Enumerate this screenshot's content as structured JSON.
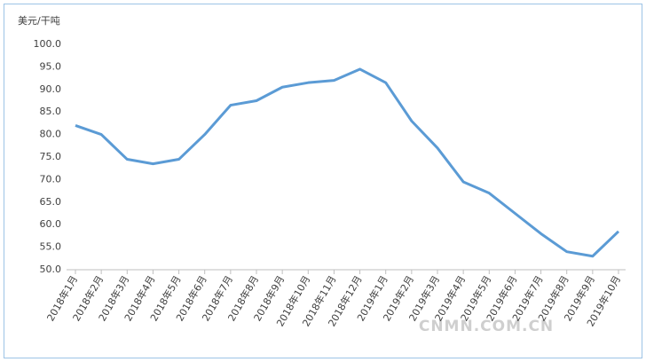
{
  "chart_data": {
    "type": "line",
    "y_axis_label": "美元/干吨",
    "watermark": "CNMN.COM.CN",
    "categories": [
      "2018年1月",
      "2018年2月",
      "2018年3月",
      "2018年4月",
      "2018年5月",
      "2018年6月",
      "2018年7月",
      "2018年8月",
      "2018年9月",
      "2018年10月",
      "2018年11月",
      "2018年12月",
      "2019年1月",
      "2019年2月",
      "2019年3月",
      "2019年4月",
      "2019年5月",
      "2019年6月",
      "2019年7月",
      "2019年8月",
      "2019年9月",
      "2019年10月"
    ],
    "series": [
      {
        "color": "#5b9bd5",
        "values": [
          82,
          80,
          74.5,
          73.5,
          74.5,
          80,
          86.5,
          87.5,
          90.5,
          91.5,
          92,
          94.5,
          91.5,
          83,
          77,
          69.5,
          67,
          62.5,
          58,
          54,
          53,
          58.5
        ]
      }
    ],
    "ylim": [
      50,
      100
    ],
    "yticks": [
      {
        "value": 50,
        "label": "50.0"
      },
      {
        "value": 55,
        "label": "55.0"
      },
      {
        "value": 60,
        "label": "60.0"
      },
      {
        "value": 65,
        "label": "65.0"
      },
      {
        "value": 70,
        "label": "70.0"
      },
      {
        "value": 75,
        "label": "75.0"
      },
      {
        "value": 80,
        "label": "80.0"
      },
      {
        "value": 85,
        "label": "85.0"
      },
      {
        "value": 90,
        "label": "90.0"
      },
      {
        "value": 95,
        "label": "95.0"
      },
      {
        "value": 100,
        "label": "100.0"
      }
    ],
    "grid": false
  }
}
